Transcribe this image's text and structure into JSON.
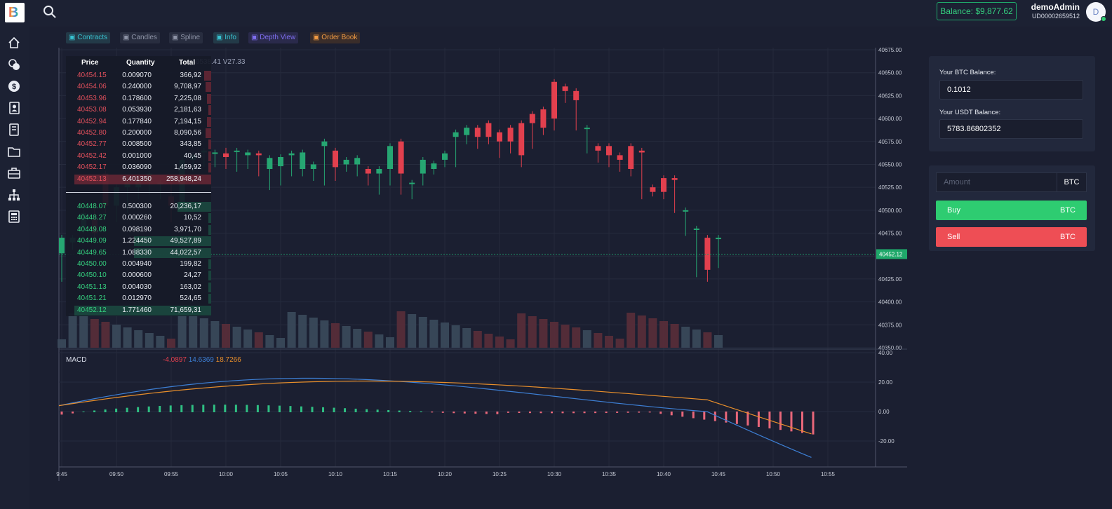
{
  "header": {
    "logo_letter": "B",
    "balance": "Balance: $9,877.62",
    "username": "demoAdmin",
    "user_id": "UD00002659512",
    "avatar_letter": "D"
  },
  "sidebar": {
    "items": [
      "home-icon",
      "coins-icon",
      "dollar-icon",
      "contacts-icon",
      "book-icon",
      "folder-icon",
      "briefcase-icon",
      "network-icon",
      "calculator-icon"
    ]
  },
  "chart_tabs": [
    {
      "label": "Contracts",
      "icon": "contracts-icon",
      "color": "#38c1d0",
      "bg": "#233a48"
    },
    {
      "label": "Candles",
      "icon": "candles-icon",
      "color": "#8d93a6",
      "bg": "#282d3f"
    },
    {
      "label": "Spline",
      "icon": "spline-icon",
      "color": "#8d93a6",
      "bg": "#282d3f"
    },
    {
      "label": "Info",
      "icon": "info-icon",
      "color": "#38c1d0",
      "bg": "#233a48"
    },
    {
      "label": "Depth View",
      "icon": "depth-icon",
      "color": "#7e6ef0",
      "bg": "#2a2a4b"
    },
    {
      "label": "Order Book",
      "icon": "orderbook-icon",
      "color": "#f09a43",
      "bg": "#3a2d2a"
    }
  ],
  "ohlc": {
    "close": "C40538.41",
    "volume": "V27.33"
  },
  "orderbook": {
    "headers": {
      "price": "Price",
      "quantity": "Quantity",
      "total": "Total"
    },
    "asks": [
      {
        "price": "40454.15",
        "qty": "0.009070",
        "total": "366,92",
        "depth": 0.05
      },
      {
        "price": "40454.06",
        "qty": "0.240000",
        "total": "9,708,97",
        "depth": 0.04
      },
      {
        "price": "40453.96",
        "qty": "0.178600",
        "total": "7,225,08",
        "depth": 0.03
      },
      {
        "price": "40453.08",
        "qty": "0.053930",
        "total": "2,181,63",
        "depth": 0.02
      },
      {
        "price": "40452.94",
        "qty": "0.177840",
        "total": "7,194,15",
        "depth": 0.03
      },
      {
        "price": "40452.80",
        "qty": "0.200000",
        "total": "8,090,56",
        "depth": 0.04
      },
      {
        "price": "40452.77",
        "qty": "0.008500",
        "total": "343,85",
        "depth": 0.02
      },
      {
        "price": "40452.42",
        "qty": "0.001000",
        "total": "40,45",
        "depth": 0.02
      },
      {
        "price": "40452.17",
        "qty": "0.036090",
        "total": "1,459,92",
        "depth": 0.02
      },
      {
        "price": "40452.13",
        "qty": "6.401350",
        "total": "258,948,24",
        "depth": 0.94
      }
    ],
    "bids": [
      {
        "price": "40448.07",
        "qty": "0.500300",
        "total": "20,236,17",
        "depth": 0.23
      },
      {
        "price": "40448.27",
        "qty": "0.000260",
        "total": "10,52",
        "depth": 0.02
      },
      {
        "price": "40449.08",
        "qty": "0.098190",
        "total": "3,971,70",
        "depth": 0.02
      },
      {
        "price": "40449.09",
        "qty": "1.224450",
        "total": "49,527,89",
        "depth": 0.53
      },
      {
        "price": "40449.65",
        "qty": "1.088330",
        "total": "44,022,57",
        "depth": 0.53
      },
      {
        "price": "40450.00",
        "qty": "0.004940",
        "total": "199,82",
        "depth": 0.02
      },
      {
        "price": "40450.10",
        "qty": "0.000600",
        "total": "24,27",
        "depth": 0.02
      },
      {
        "price": "40451.13",
        "qty": "0.004030",
        "total": "163,02",
        "depth": 0.02
      },
      {
        "price": "40451.21",
        "qty": "0.012970",
        "total": "524,65",
        "depth": 0.02
      },
      {
        "price": "40452.12",
        "qty": "1.771460",
        "total": "71,659,31",
        "depth": 0.94
      }
    ]
  },
  "macd": {
    "label": "MACD",
    "v1": "-4.0897",
    "v2": "14.6369",
    "v3": "18.7266"
  },
  "balances": {
    "btc_label": "Your BTC Balance:",
    "btc_value": "0.1012",
    "usdt_label": "Your USDT Balance:",
    "usdt_value": "5783.86802352"
  },
  "trade": {
    "amount_placeholder": "Amount",
    "unit": "BTC",
    "buy_label": "Buy",
    "sell_label": "Sell",
    "buy_unit": "BTC",
    "sell_unit": "BTC"
  },
  "colors": {
    "up": "#26a672",
    "down": "#e2404e",
    "bg": "#1b1f31",
    "accent": "#35d07f"
  },
  "chart_data": {
    "type": "candlestick",
    "price_ticks": [
      "40675.00",
      "40650.00",
      "40625.00",
      "40600.00",
      "40575.00",
      "40550.00",
      "40525.00",
      "40500.00",
      "40475.00",
      "40450.00",
      "40425.00",
      "40400.00",
      "40375.00",
      "40350.00"
    ],
    "current_price": "40452.12",
    "macd_ticks": [
      "40.00",
      "20.00",
      "0.00",
      "-20.00"
    ],
    "time_labels": [
      "9:45",
      "09:50",
      "09:55",
      "10:00",
      "10:05",
      "10:10",
      "10:15",
      "10:20",
      "10:25",
      "10:30",
      "10:35",
      "10:40",
      "10:45",
      "10:50",
      "10:55"
    ],
    "candles": [
      [
        40453,
        40470,
        40440,
        40425
      ],
      [
        40465,
        40470,
        40462,
        40460
      ],
      [
        40480,
        40497,
        40480,
        40478
      ],
      [
        40490,
        40475,
        40505,
        40470
      ],
      [
        40540,
        40505,
        40540,
        40500
      ],
      [
        40505,
        40525,
        40490,
        40490
      ],
      [
        40525,
        40530,
        40505,
        40500
      ],
      [
        40525,
        40534,
        40520,
        40515
      ],
      [
        40530,
        40540,
        40520,
        40520
      ],
      [
        40530,
        40530,
        40520,
        40515
      ],
      [
        40515,
        40505,
        40527,
        40490
      ],
      [
        40505,
        40555,
        40507,
        40502
      ],
      [
        40555,
        40560,
        40547,
        40545
      ],
      [
        40563,
        40565,
        40555,
        40550
      ],
      [
        40562,
        40563,
        40555,
        40550
      ],
      [
        40562,
        40558,
        40565,
        40548
      ],
      [
        40565,
        40565,
        40555,
        40545
      ],
      [
        40560,
        40563,
        40557,
        40548
      ],
      [
        40562,
        40560,
        40545,
        40540
      ],
      [
        40545,
        40557,
        40530,
        40525
      ],
      [
        40548,
        40558,
        40535,
        40530
      ],
      [
        40560,
        40562,
        40545,
        40540
      ],
      [
        40545,
        40563,
        40543,
        40540
      ],
      [
        40545,
        40550,
        40540,
        40535
      ],
      [
        40570,
        40575,
        40535,
        40530
      ],
      [
        40565,
        40547,
        40540,
        40535
      ],
      [
        40550,
        40555,
        40548,
        40545
      ],
      [
        40550,
        40557,
        40545,
        40540
      ],
      [
        40545,
        40540,
        40537,
        40530
      ],
      [
        40540,
        40545,
        40530,
        40520
      ],
      [
        40545,
        40570,
        40540,
        40530
      ],
      [
        40575,
        40540,
        40525,
        40520
      ],
      [
        40530,
        40530,
        40520,
        40515
      ],
      [
        40540,
        40555,
        40535,
        40530
      ],
      [
        40545,
        40551,
        40547,
        40542
      ],
      [
        40555,
        40562,
        40555,
        40550
      ],
      [
        40580,
        40585,
        40555,
        40550
      ],
      [
        40582,
        40590,
        40582,
        40575
      ],
      [
        40590,
        40580,
        40575,
        40570
      ],
      [
        40595,
        40580,
        40590,
        40575
      ],
      [
        40585,
        40575,
        40570,
        40560
      ],
      [
        40590,
        40575,
        40580,
        40565
      ],
      [
        40595,
        40560,
        40577,
        40550
      ],
      [
        40605,
        40595,
        40580,
        40570
      ],
      [
        40610,
        40590,
        40595,
        40585
      ],
      [
        40640,
        40600,
        40625,
        40590
      ],
      [
        40635,
        40630,
        40620,
        40620
      ],
      [
        40630,
        40620,
        40590,
        40590
      ],
      [
        40590,
        40590,
        40565,
        40565
      ],
      [
        40570,
        40565,
        40560,
        40555
      ],
      [
        40570,
        40560,
        40557,
        40550
      ],
      [
        40560,
        40555,
        40545,
        40545
      ],
      [
        40570,
        40545,
        40563,
        40540
      ],
      [
        40565,
        40563,
        40520,
        40515
      ],
      [
        40525,
        40520,
        40522,
        40518
      ],
      [
        40535,
        40520,
        40533,
        40515
      ],
      [
        40535,
        40533,
        40503,
        40500
      ],
      [
        40500,
        40500,
        40480,
        40475
      ],
      [
        40480,
        40480,
        40435,
        40430
      ],
      [
        40470,
        40435,
        40470,
        40425
      ],
      [
        40470,
        40470,
        40452,
        40440
      ]
    ]
  }
}
